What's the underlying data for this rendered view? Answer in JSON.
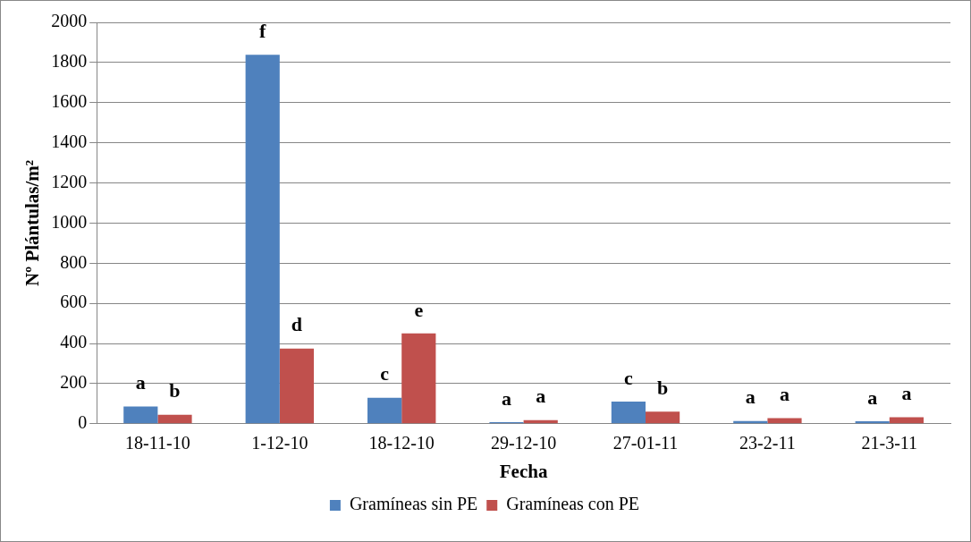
{
  "chart_data": {
    "type": "bar",
    "xlabel": "Fecha",
    "ylabel": "Nº Plántulas/m²",
    "categories": [
      "18-11-10",
      "1-12-10",
      "18-12-10",
      "29-12-10",
      "27-01-11",
      "23-2-11",
      "21-3-11"
    ],
    "series": [
      {
        "name": "Gramíneas sin PE",
        "color": "#4f81bd",
        "values": [
          86,
          1838,
          130,
          8,
          110,
          14,
          13
        ],
        "value_labels": [
          "a",
          "f",
          "c",
          "a",
          "c",
          "a",
          "a"
        ]
      },
      {
        "name": "Gramíneas con PE",
        "color": "#c0504d",
        "values": [
          45,
          375,
          450,
          18,
          60,
          28,
          33
        ],
        "value_labels": [
          "b",
          "d",
          "e",
          "a",
          "b",
          "a",
          "a"
        ]
      }
    ],
    "ylim": [
      0,
      2000
    ],
    "yticks": [
      0,
      200,
      400,
      600,
      800,
      1000,
      1200,
      1400,
      1600,
      1800,
      2000
    ],
    "grid": "y",
    "legend": "bottom"
  }
}
